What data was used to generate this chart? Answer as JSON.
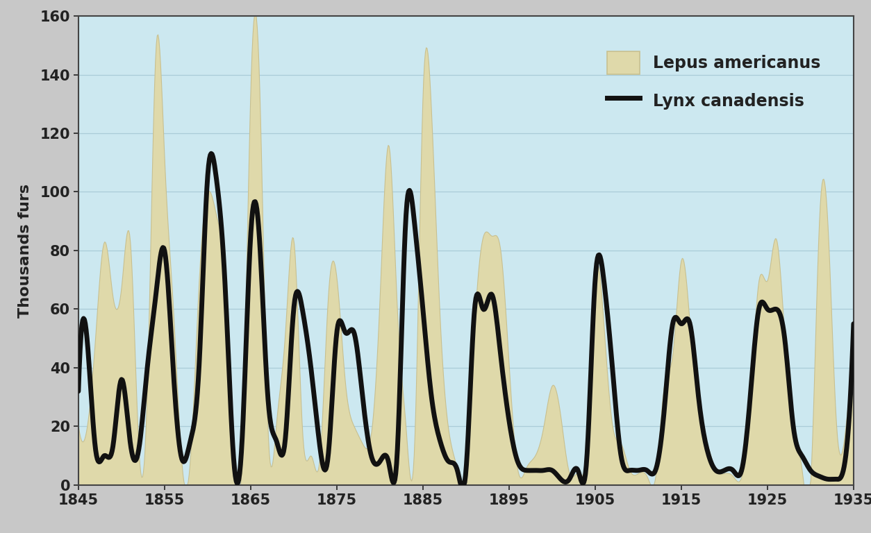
{
  "hare_years": [
    1845,
    1846,
    1847,
    1848,
    1849,
    1850,
    1851,
    1852,
    1853,
    1854,
    1855,
    1856,
    1857,
    1858,
    1859,
    1860,
    1861,
    1862,
    1863,
    1864,
    1865,
    1866,
    1867,
    1868,
    1869,
    1870,
    1871,
    1872,
    1873,
    1874,
    1875,
    1876,
    1877,
    1878,
    1879,
    1880,
    1881,
    1882,
    1883,
    1884,
    1885,
    1886,
    1887,
    1888,
    1889,
    1890,
    1891,
    1892,
    1893,
    1894,
    1895,
    1896,
    1897,
    1898,
    1899,
    1900,
    1901,
    1902,
    1903,
    1904,
    1905,
    1906,
    1907,
    1908,
    1909,
    1910,
    1911,
    1912,
    1913,
    1914,
    1915,
    1916,
    1917,
    1918,
    1919,
    1920,
    1921,
    1922,
    1923,
    1924,
    1925,
    1926,
    1927,
    1928,
    1929,
    1930,
    1931,
    1932,
    1933,
    1934,
    1935
  ],
  "hare_values": [
    20,
    20,
    52,
    83,
    64,
    68,
    83,
    12,
    36,
    150,
    110,
    60,
    7,
    10,
    70,
    100,
    92,
    70,
    10,
    11,
    137,
    137,
    18,
    22,
    52,
    83,
    18,
    10,
    9,
    65,
    70,
    34,
    20,
    14,
    18,
    65,
    116,
    60,
    20,
    14,
    135,
    125,
    55,
    18,
    5,
    3,
    55,
    85,
    85,
    80,
    40,
    5,
    6,
    10,
    20,
    34,
    23,
    4,
    4,
    14,
    72,
    54,
    20,
    14,
    5,
    4,
    3,
    3,
    34,
    45,
    77,
    54,
    25,
    14,
    5,
    4,
    3,
    3,
    30,
    70,
    70,
    84,
    50,
    20,
    5,
    2,
    90,
    88,
    20,
    18,
    40
  ],
  "lynx_years": [
    1845,
    1846,
    1847,
    1848,
    1849,
    1850,
    1851,
    1852,
    1853,
    1854,
    1855,
    1856,
    1857,
    1858,
    1859,
    1860,
    1861,
    1862,
    1863,
    1864,
    1865,
    1866,
    1867,
    1868,
    1869,
    1870,
    1871,
    1872,
    1873,
    1874,
    1875,
    1876,
    1877,
    1878,
    1879,
    1880,
    1881,
    1882,
    1883,
    1884,
    1885,
    1886,
    1887,
    1888,
    1889,
    1890,
    1891,
    1892,
    1893,
    1894,
    1895,
    1896,
    1897,
    1898,
    1899,
    1900,
    1901,
    1902,
    1903,
    1904,
    1905,
    1906,
    1907,
    1908,
    1909,
    1910,
    1911,
    1912,
    1913,
    1914,
    1915,
    1916,
    1917,
    1918,
    1919,
    1920,
    1921,
    1922,
    1923,
    1924,
    1925,
    1926,
    1927,
    1928,
    1929,
    1930,
    1931,
    1932,
    1933,
    1934,
    1935
  ],
  "lynx_values": [
    32,
    50,
    12,
    10,
    13,
    36,
    15,
    12,
    40,
    65,
    80,
    40,
    9,
    15,
    40,
    105,
    105,
    70,
    10,
    15,
    85,
    85,
    30,
    15,
    15,
    60,
    60,
    40,
    14,
    10,
    52,
    52,
    52,
    30,
    10,
    8,
    8,
    10,
    90,
    90,
    60,
    30,
    15,
    8,
    5,
    5,
    60,
    60,
    65,
    45,
    22,
    8,
    5,
    5,
    5,
    5,
    2,
    2,
    5,
    8,
    70,
    70,
    40,
    10,
    5,
    5,
    5,
    5,
    25,
    55,
    55,
    55,
    30,
    12,
    5,
    5,
    5,
    5,
    30,
    60,
    60,
    60,
    50,
    20,
    10,
    5,
    3,
    2,
    2,
    8,
    55
  ],
  "hare_color": "#dfd9aa",
  "hare_edge_color": "#c8c090",
  "lynx_color": "#111111",
  "background_color": "#cce8f0",
  "outer_background": "#c8c8c8",
  "ylabel": "Thousands furs",
  "ylim": [
    0,
    160
  ],
  "xlim": [
    1845,
    1935
  ],
  "yticks": [
    0,
    20,
    40,
    60,
    80,
    100,
    120,
    140,
    160
  ],
  "xticks": [
    1845,
    1855,
    1865,
    1875,
    1885,
    1895,
    1905,
    1915,
    1925,
    1935
  ],
  "legend_hare_label": "Lepus americanus",
  "legend_lynx_label": "Lynx canadensis",
  "grid_color": "#aaccd8",
  "lynx_linewidth": 5.0,
  "hare_alpha": 1.0,
  "figwidth": 12.54,
  "figheight": 7.68,
  "dpi": 100
}
